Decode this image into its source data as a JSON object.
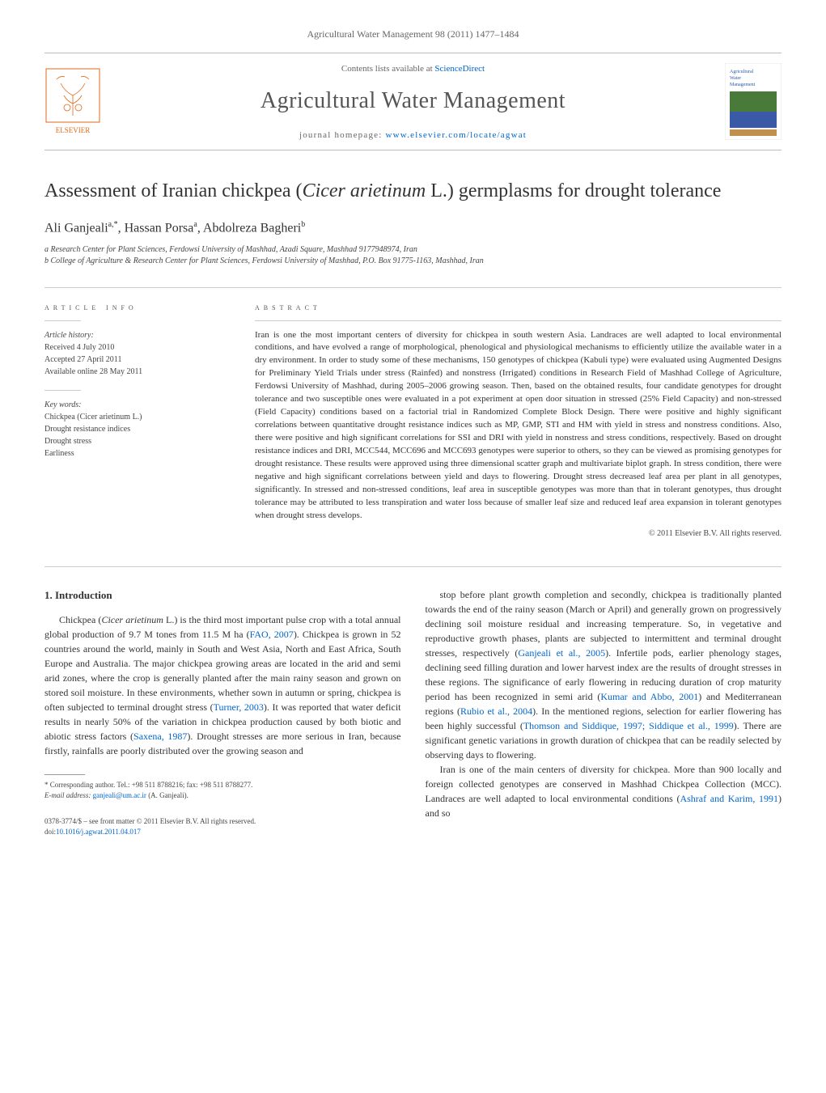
{
  "journal_ref": "Agricultural Water Management 98 (2011) 1477–1484",
  "header": {
    "contents_prefix": "Contents lists available at ",
    "contents_link": "ScienceDirect",
    "journal_name": "Agricultural Water Management",
    "homepage_prefix": "journal homepage: ",
    "homepage_link": "www.elsevier.com/locate/agwat"
  },
  "cover": {
    "title_line1": "Agricultural",
    "title_line2": "Water",
    "title_line3": "Management",
    "bg_color": "#ffffff",
    "accent_color": "#2b5da8",
    "text_color": "#2b5da8"
  },
  "elsevier_logo": {
    "brand": "ELSEVIER",
    "stroke_color": "#e06a1a",
    "text_color": "#e06a1a"
  },
  "title": "Assessment of Iranian chickpea (<em>Cicer arietinum</em> L.) germplasms for drought tolerance",
  "authors": "Ali Ganjeali<sup>a,*</sup>, Hassan Porsa<sup>a</sup>, Abdolreza Bagheri<sup>b</sup>",
  "affiliations": [
    "a Research Center for Plant Sciences, Ferdowsi University of Mashhad, Azadi Square, Mashhad 9177948974, Iran",
    "b College of Agriculture & Research Center for Plant Sciences, Ferdowsi University of Mashhad, P.O. Box 91775-1163, Mashhad, Iran"
  ],
  "article_info": {
    "label": "ARTICLE INFO",
    "history_label": "Article history:",
    "history": [
      "Received 4 July 2010",
      "Accepted 27 April 2011",
      "Available online 28 May 2011"
    ],
    "keywords_label": "Key words:",
    "keywords": [
      "Chickpea (Cicer arietinum L.)",
      "Drought resistance indices",
      "Drought stress",
      "Earliness"
    ]
  },
  "abstract": {
    "label": "ABSTRACT",
    "text": "Iran is one the most important centers of diversity for chickpea in south western Asia. Landraces are well adapted to local environmental conditions, and have evolved a range of morphological, phenological and physiological mechanisms to efficiently utilize the available water in a dry environment. In order to study some of these mechanisms, 150 genotypes of chickpea (Kabuli type) were evaluated using Augmented Designs for Preliminary Yield Trials under stress (Rainfed) and nonstress (Irrigated) conditions in Research Field of Mashhad College of Agriculture, Ferdowsi University of Mashhad, during 2005–2006 growing season. Then, based on the obtained results, four candidate genotypes for drought tolerance and two susceptible ones were evaluated in a pot experiment at open door situation in stressed (25% Field Capacity) and non-stressed (Field Capacity) conditions based on a factorial trial in Randomized Complete Block Design. There were positive and highly significant correlations between quantitative drought resistance indices such as MP, GMP, STI and HM with yield in stress and nonstress conditions. Also, there were positive and high significant correlations for SSI and DRI with yield in nonstress and stress conditions, respectively. Based on drought resistance indices and DRI, MCC544, MCC696 and MCC693 genotypes were superior to others, so they can be viewed as promising genotypes for drought resistance. These results were approved using three dimensional scatter graph and multivariate biplot graph. In stress condition, there were negative and high significant correlations between yield and days to flowering. Drought stress decreased leaf area per plant in all genotypes, significantly. In stressed and non-stressed conditions, leaf area in susceptible genotypes was more than that in tolerant genotypes, thus drought tolerance may be attributed to less transpiration and water loss because of smaller leaf size and reduced leaf area expansion in tolerant genotypes when drought stress develops.",
    "copyright": "© 2011 Elsevier B.V. All rights reserved."
  },
  "intro": {
    "heading": "1. Introduction",
    "col1": "Chickpea (<em>Cicer arietinum</em> L.) is the third most important pulse crop with a total annual global production of 9.7 M tones from 11.5 M ha (<a href='#'>FAO, 2007</a>). Chickpea is grown in 52 countries around the world, mainly in South and West Asia, North and East Africa, South Europe and Australia. The major chickpea growing areas are located in the arid and semi arid zones, where the crop is generally planted after the main rainy season and grown on stored soil moisture. In these environments, whether sown in autumn or spring, chickpea is often subjected to terminal drought stress (<a href='#'>Turner, 2003</a>). It was reported that water deficit results in nearly 50% of the variation in chickpea production caused by both biotic and abiotic stress factors (<a href='#'>Saxena, 1987</a>). Drought stresses are more serious in Iran, because firstly, rainfalls are poorly distributed over the growing season and",
    "col2_p1": "stop before plant growth completion and secondly, chickpea is traditionally planted towards the end of the rainy season (March or April) and generally grown on progressively declining soil moisture residual and increasing temperature. So, in vegetative and reproductive growth phases, plants are subjected to intermittent and terminal drought stresses, respectively (<a href='#'>Ganjeali et al., 2005</a>). Infertile pods, earlier phenology stages, declining seed filling duration and lower harvest index are the results of drought stresses in these regions. The significance of early flowering in reducing duration of crop maturity period has been recognized in semi arid (<a href='#'>Kumar and Abbo, 2001</a>) and Mediterranean regions (<a href='#'>Rubio et al., 2004</a>). In the mentioned regions, selection for earlier flowering has been highly successful (<a href='#'>Thomson and Siddique, 1997; Siddique et al., 1999</a>). There are significant genetic variations in growth duration of chickpea that can be readily selected by observing days to flowering.",
    "col2_p2": "Iran is one of the main centers of diversity for chickpea. More than 900 locally and foreign collected genotypes are conserved in Mashhad Chickpea Collection (MCC). Landraces are well adapted to local environmental conditions (<a href='#'>Ashraf and Karim, 1991</a>) and so"
  },
  "footnotes": {
    "corresponding": "* Corresponding author. Tel.: +98 511 8788216; fax: +98 511 8788277.",
    "email_label": "E-mail address: ",
    "email": "ganjeali@um.ac.ir",
    "email_suffix": " (A. Ganjeali)."
  },
  "footer": {
    "issn": "0378-3774/$ – see front matter © 2011 Elsevier B.V. All rights reserved.",
    "doi_label": "doi:",
    "doi": "10.1016/j.agwat.2011.04.017"
  }
}
